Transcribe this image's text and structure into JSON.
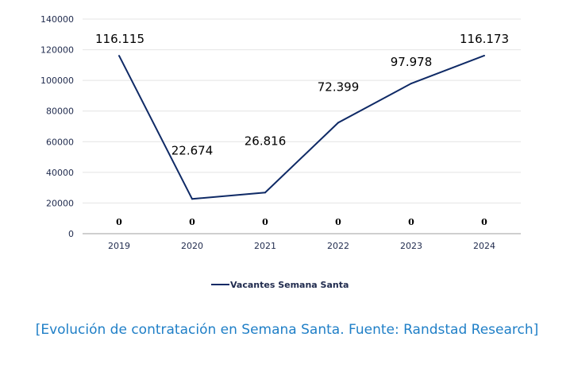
{
  "chart_data": {
    "type": "line",
    "categories": [
      "2019",
      "2020",
      "2021",
      "2022",
      "2023",
      "2024"
    ],
    "series": [
      {
        "name": "Vacantes Semana Santa",
        "values": [
          116115,
          22674,
          26816,
          72399,
          97978,
          116173
        ],
        "data_labels": [
          "116.115",
          "22.674",
          "26.816",
          "72.399",
          "97.978",
          "116.173"
        ],
        "color": "#0f2a66"
      }
    ],
    "secondary_labels": [
      "0",
      "0",
      "0",
      "0",
      "0",
      "0"
    ],
    "ylim": [
      0,
      140000
    ],
    "yticks": [
      "0",
      "20000",
      "40000",
      "60000",
      "80000",
      "100000",
      "120000",
      "140000"
    ],
    "grid": true,
    "legend": "bottom",
    "xlabel": "",
    "ylabel": ""
  },
  "caption": "[Evolución de contratación en Semana Santa. Fuente: Randstad Research]"
}
